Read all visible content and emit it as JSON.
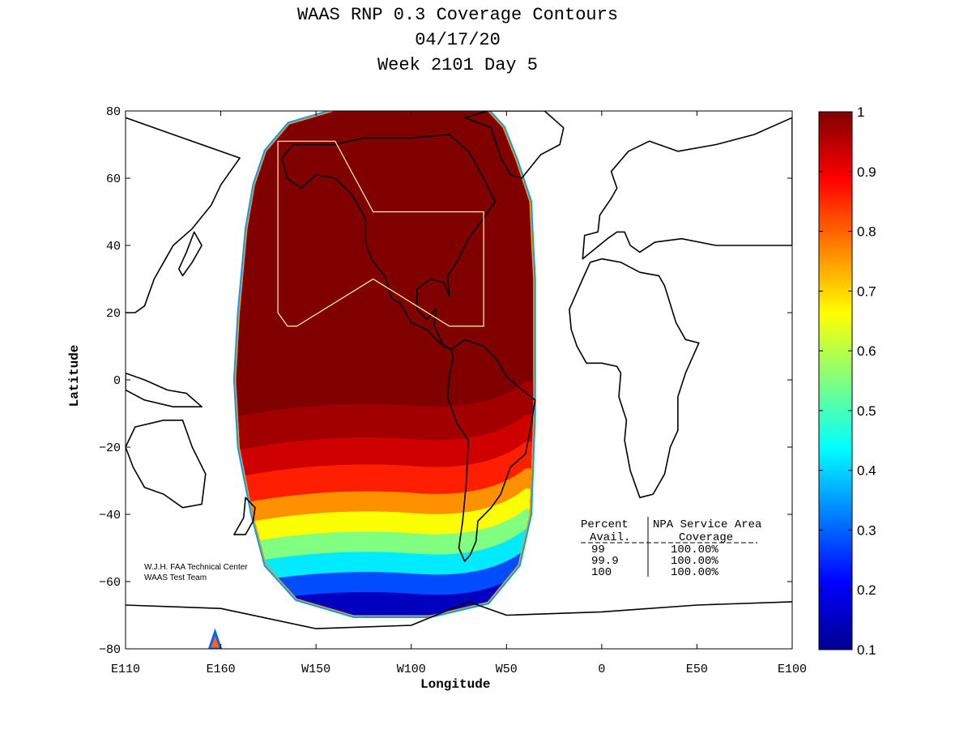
{
  "chart_data": {
    "type": "heatmap",
    "title_lines": [
      "WAAS RNP 0.3 Coverage Contours",
      "04/17/20",
      "Week 2101 Day 5"
    ],
    "xlabel": "Longitude",
    "ylabel": "Latitude",
    "xlim": [
      -250,
      100
    ],
    "ylim": [
      -80,
      80
    ],
    "xticks": [
      {
        "value": -250,
        "label": "E110"
      },
      {
        "value": -200,
        "label": "E160"
      },
      {
        "value": -150,
        "label": "W150"
      },
      {
        "value": -100,
        "label": "W100"
      },
      {
        "value": -50,
        "label": "W50"
      },
      {
        "value": 0,
        "label": "0"
      },
      {
        "value": 50,
        "label": "E50"
      },
      {
        "value": 100,
        "label": "E100"
      }
    ],
    "yticks": [
      {
        "value": 80,
        "label": "80"
      },
      {
        "value": 60,
        "label": "60"
      },
      {
        "value": 40,
        "label": "40"
      },
      {
        "value": 20,
        "label": "20"
      },
      {
        "value": 0,
        "label": "0"
      },
      {
        "value": -20,
        "label": "−20"
      },
      {
        "value": -40,
        "label": "−40"
      },
      {
        "value": -60,
        "label": "−60"
      },
      {
        "value": -80,
        "label": "−80"
      }
    ],
    "colorbar": {
      "min": 0.1,
      "max": 1,
      "ticks": [
        {
          "value": 1,
          "label": "1"
        },
        {
          "value": 0.9,
          "label": "0.9"
        },
        {
          "value": 0.8,
          "label": "0.8"
        },
        {
          "value": 0.7,
          "label": "0.7"
        },
        {
          "value": 0.6,
          "label": "0.6"
        },
        {
          "value": 0.5,
          "label": "0.5"
        },
        {
          "value": 0.4,
          "label": "0.4"
        },
        {
          "value": 0.3,
          "label": "0.3"
        },
        {
          "value": 0.2,
          "label": "0.2"
        },
        {
          "value": 0.1,
          "label": "0.1"
        }
      ],
      "colors": [
        "#00008f",
        "#0000ff",
        "#0080ff",
        "#00ffff",
        "#80ff80",
        "#ffff00",
        "#ff8000",
        "#ff0000",
        "#800000"
      ]
    },
    "coverage_region": {
      "full_value_color": "#800000",
      "bands_south": [
        {
          "lat": -10,
          "value": 0.97
        },
        {
          "lat": -20,
          "value": 0.93
        },
        {
          "lat": -28,
          "value": 0.86
        },
        {
          "lat": -36,
          "value": 0.76
        },
        {
          "lat": -42,
          "value": 0.66
        },
        {
          "lat": -48,
          "value": 0.55
        },
        {
          "lat": -54,
          "value": 0.42
        },
        {
          "lat": -60,
          "value": 0.28
        },
        {
          "lat": -66,
          "value": 0.15
        }
      ]
    },
    "service_area_color": "#ffff80",
    "annotations": {
      "credit_line1": "W.J.H. FAA Technical Center",
      "credit_line2": "WAAS Test Team"
    },
    "coverage_table": {
      "header1": [
        "Percent",
        "NPA Service Area"
      ],
      "header2": [
        "Avail.",
        "Coverage"
      ],
      "rows": [
        [
          "99",
          "100.00%"
        ],
        [
          "99.9",
          "100.00%"
        ],
        [
          "100",
          "100.00%"
        ]
      ]
    }
  }
}
